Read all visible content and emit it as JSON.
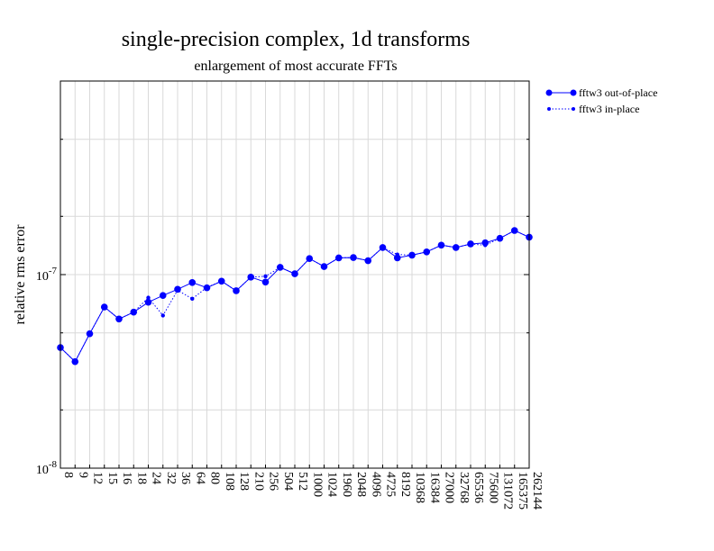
{
  "chart_data": {
    "type": "line",
    "title": "single-precision complex, 1d transforms",
    "subtitle": "enlargement of most accurate FFTs",
    "ylabel": "relative rms error",
    "xlabel": "",
    "y_scale": "log",
    "ylim": [
      1e-08,
      1e-06
    ],
    "y_tick_labels": [
      {
        "value": 1e-08,
        "base": "10",
        "exp": "-8"
      },
      {
        "value": 1e-07,
        "base": "10",
        "exp": "-7"
      }
    ],
    "categories": [
      "8",
      "9",
      "12",
      "15",
      "16",
      "18",
      "24",
      "32",
      "36",
      "64",
      "80",
      "108",
      "128",
      "210",
      "256",
      "504",
      "512",
      "1000",
      "1024",
      "1960",
      "2048",
      "4096",
      "4725",
      "8192",
      "10368",
      "16384",
      "27000",
      "32768",
      "65536",
      "75600",
      "131072",
      "165375",
      "262144"
    ],
    "series": [
      {
        "name": "fftw3 out-of-place",
        "color": "#0000ff",
        "style": "solid",
        "values": [
          4.2e-08,
          3.55e-08,
          4.95e-08,
          6.8e-08,
          5.9e-08,
          6.4e-08,
          7.2e-08,
          7.8e-08,
          8.4e-08,
          9.1e-08,
          8.55e-08,
          9.25e-08,
          8.25e-08,
          9.7e-08,
          9.15e-08,
          1.09e-07,
          1.01e-07,
          1.21e-07,
          1.1e-07,
          1.22e-07,
          1.225e-07,
          1.18e-07,
          1.38e-07,
          1.22e-07,
          1.26e-07,
          1.31e-07,
          1.42e-07,
          1.38e-07,
          1.44e-07,
          1.46e-07,
          1.54e-07,
          1.69e-07,
          1.56e-07
        ]
      },
      {
        "name": "fftw3 in-place",
        "color": "#0000ff",
        "style": "dotted",
        "values": [
          4.2e-08,
          3.55e-08,
          4.95e-08,
          6.8e-08,
          5.9e-08,
          6.4e-08,
          7.6e-08,
          6.15e-08,
          8.3e-08,
          7.5e-08,
          8.6e-08,
          9.25e-08,
          8.25e-08,
          9.7e-08,
          9.8e-08,
          1.09e-07,
          1.01e-07,
          1.21e-07,
          1.1e-07,
          1.22e-07,
          1.225e-07,
          1.18e-07,
          1.38e-07,
          1.27e-07,
          1.26e-07,
          1.31e-07,
          1.42e-07,
          1.38e-07,
          1.44e-07,
          1.42e-07,
          1.54e-07,
          1.69e-07,
          1.56e-07
        ]
      }
    ],
    "grid": true,
    "legend_position": "outside-top-right"
  }
}
